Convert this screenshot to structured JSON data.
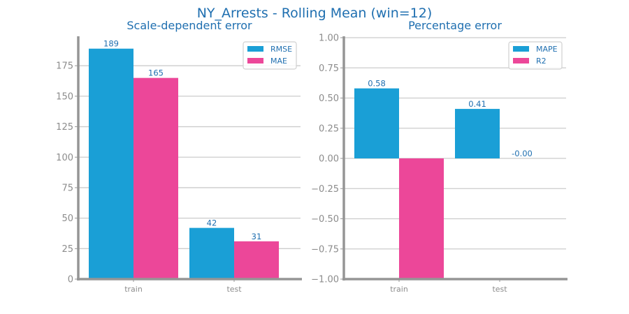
{
  "title": "NY_Arrests - Rolling Mean (win=12)",
  "colors": {
    "blue": "#1a9fd6",
    "pink": "#ec4799",
    "axis": "#959595",
    "grid": "#cccccc",
    "text": "#1f6fb0"
  },
  "chart_data": [
    {
      "type": "bar",
      "title": "Scale-dependent error",
      "categories": [
        "train",
        "test"
      ],
      "series": [
        {
          "name": "RMSE",
          "values": [
            189,
            42
          ],
          "labels": [
            "189",
            "42"
          ],
          "color": "#1a9fd6"
        },
        {
          "name": "MAE",
          "values": [
            165,
            31
          ],
          "labels": [
            "165",
            "31"
          ],
          "color": "#ec4799"
        }
      ],
      "ylim": [
        0,
        198
      ],
      "yticks": [
        0,
        25,
        50,
        75,
        100,
        125,
        150,
        175
      ],
      "ytick_labels": [
        "0",
        "25",
        "50",
        "75",
        "100",
        "125",
        "150",
        "175"
      ],
      "grid": true,
      "legend": "top-right"
    },
    {
      "type": "bar",
      "title": "Percentage error",
      "categories": [
        "train",
        "test"
      ],
      "series": [
        {
          "name": "MAPE",
          "values": [
            0.58,
            0.41
          ],
          "labels": [
            "0.58",
            "0.41"
          ],
          "color": "#1a9fd6"
        },
        {
          "name": "R2",
          "values": [
            -1.0,
            -0.0
          ],
          "labels": [
            "",
            "-0.00"
          ],
          "color": "#ec4799"
        }
      ],
      "ylim": [
        -1.0,
        1.0
      ],
      "yticks": [
        -1.0,
        -0.75,
        -0.5,
        -0.25,
        0.0,
        0.25,
        0.5,
        0.75,
        1.0
      ],
      "ytick_labels": [
        "−1.00",
        "−0.75",
        "−0.50",
        "−0.25",
        "0.00",
        "0.25",
        "0.50",
        "0.75",
        "1.00"
      ],
      "grid": true,
      "legend": "top-right"
    }
  ]
}
